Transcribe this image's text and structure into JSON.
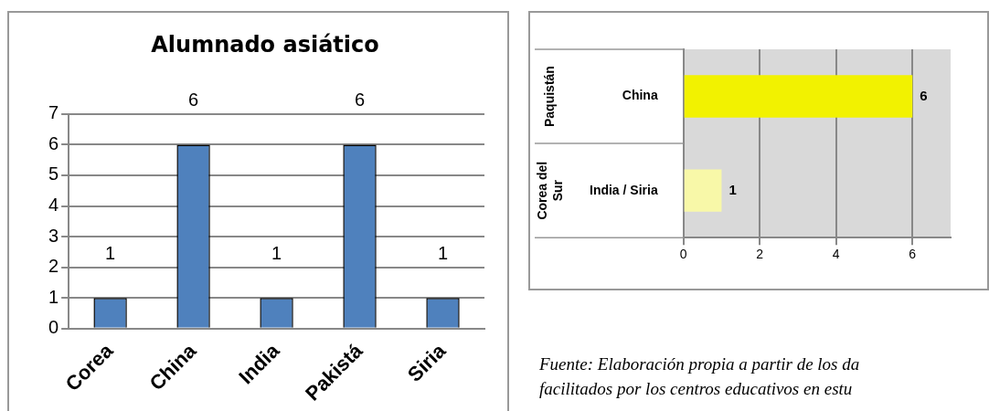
{
  "chart_data": [
    {
      "type": "bar",
      "title": "Alumnado asiático",
      "categories": [
        "Corea",
        "China",
        "India",
        "Pakistá",
        "Siria"
      ],
      "values": [
        1,
        6,
        1,
        6,
        1
      ],
      "color": "#4f81bd",
      "ylim": [
        0,
        7
      ],
      "yticks": [
        0,
        1,
        2,
        3,
        4,
        5,
        6,
        7
      ],
      "grid": "y",
      "data_labels": true,
      "legend": false
    },
    {
      "type": "bar",
      "orientation": "horizontal",
      "categories": [
        "China",
        "India / Siria"
      ],
      "values": [
        6,
        1
      ],
      "colors": [
        "#f2f200",
        "#f8f8a8"
      ],
      "xlim": [
        0,
        7
      ],
      "xticks": [
        0,
        2,
        4,
        6
      ],
      "grid": "x",
      "data_labels": true,
      "legend": false,
      "annotations": [
        "Paquistán",
        "Corea del Sur",
        "Fuente: Elaboración propia a partir de los da",
        "facilitados por los centros educativos en estu"
      ]
    }
  ]
}
